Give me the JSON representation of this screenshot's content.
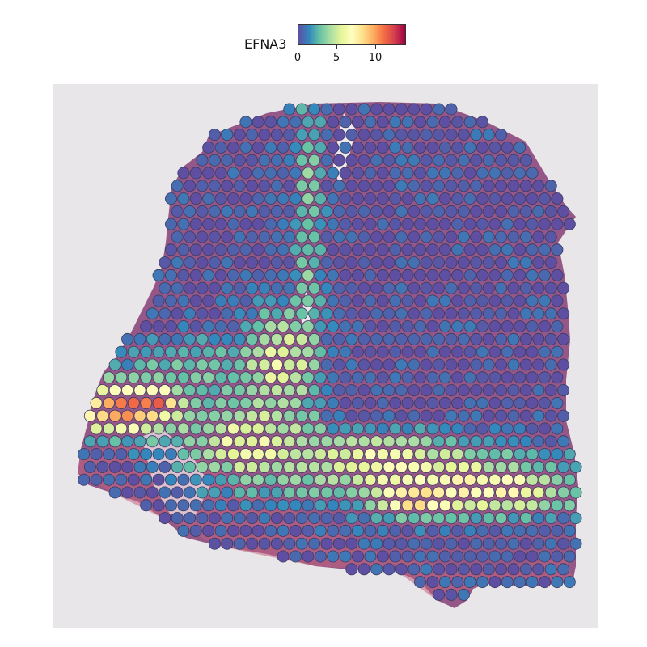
{
  "legend": {
    "title": "EFNA3",
    "ticks": [
      {
        "label": "0",
        "value": 0
      },
      {
        "label": "5",
        "value": 5
      },
      {
        "label": "10",
        "value": 10
      }
    ],
    "range": [
      0,
      14
    ],
    "colormap": [
      "#5e4fa2",
      "#3288bd",
      "#66c2a5",
      "#abdda4",
      "#e6f598",
      "#ffffbf",
      "#fee08b",
      "#fdae61",
      "#f46d43",
      "#d53e4f",
      "#9e0142"
    ]
  },
  "colors": {
    "background_panel": "#e9e6e9",
    "tissue_base": "#8f4f82",
    "tissue_light": "#b36e8e",
    "tissue_pink": "#c2627e",
    "spot_stroke": "#3b3a60"
  }
}
